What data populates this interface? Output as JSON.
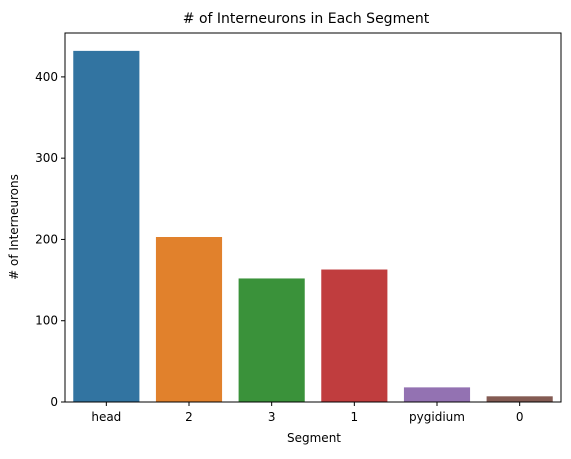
{
  "chart_data": {
    "type": "bar",
    "title": "# of Interneurons in Each Segment",
    "xlabel": "Segment",
    "ylabel": "# of Interneurons",
    "categories": [
      "head",
      "2",
      "3",
      "1",
      "pygidium",
      "0"
    ],
    "values": [
      432,
      203,
      152,
      163,
      18,
      7
    ],
    "colors": [
      "#3274a1",
      "#e1812c",
      "#3a923a",
      "#c03d3e",
      "#9372b2",
      "#845b53"
    ],
    "ylim": [
      0,
      454
    ],
    "yticks": [
      0,
      100,
      200,
      300,
      400
    ],
    "grid": false,
    "legend": "none"
  }
}
